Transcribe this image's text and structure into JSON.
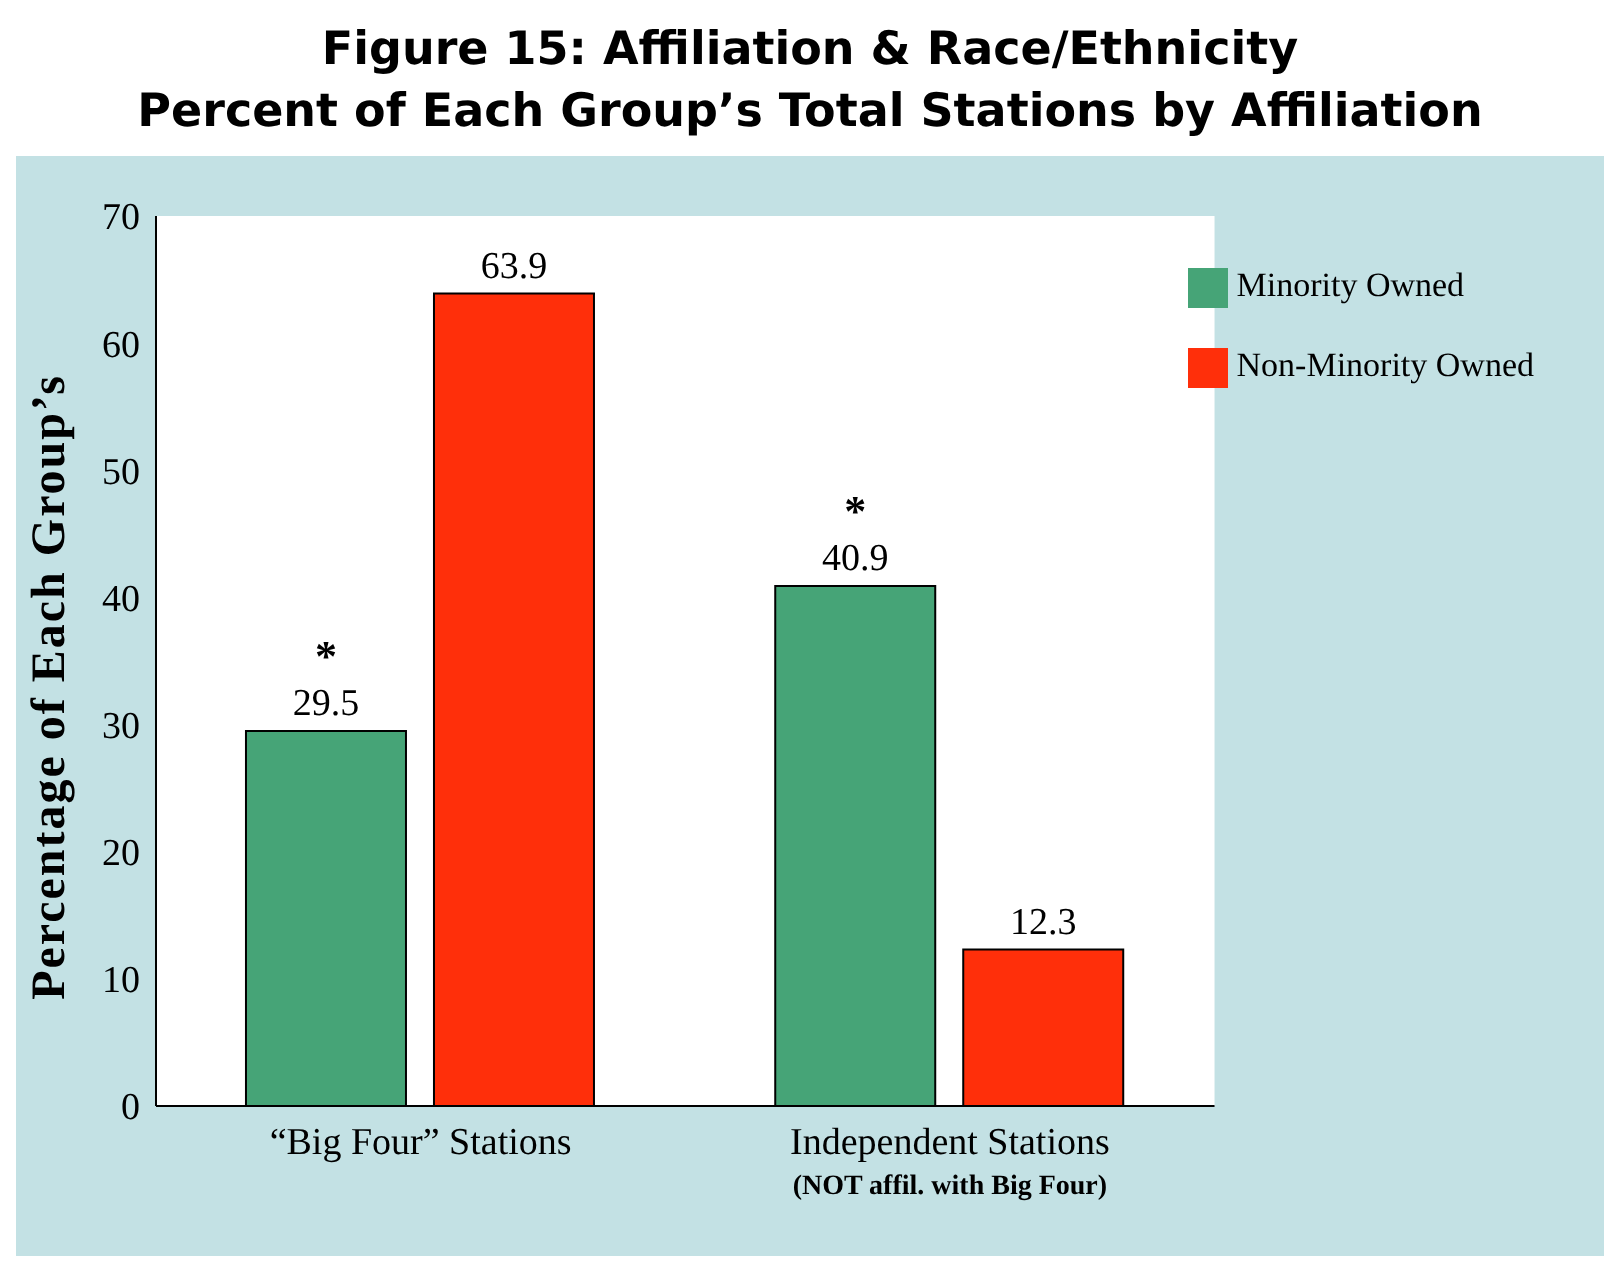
{
  "chart_data": {
    "type": "bar",
    "title": "Figure 15: Affiliation & Race/Ethnicity",
    "subtitle": "Percent of Each Group’s Total Stations by Affiliation",
    "ylabel": "Percentage of Each Group’s",
    "categories": [
      "“Big Four” Stations",
      "Independent Stations\n(NOT affil. with Big Four)"
    ],
    "series": [
      {
        "name": "Minority Owned",
        "color": "#46a477",
        "values": [
          29.5,
          40.9
        ]
      },
      {
        "name": "Non-Minority Owned",
        "color": "#ff2f0a",
        "values": [
          63.9,
          12.3
        ]
      }
    ],
    "ylim": [
      0,
      70
    ],
    "yticks": [
      0,
      10,
      20,
      30,
      40,
      50,
      60,
      70
    ],
    "data_labels": true,
    "legend": "top right",
    "annotations": [
      "*",
      "*"
    ]
  }
}
